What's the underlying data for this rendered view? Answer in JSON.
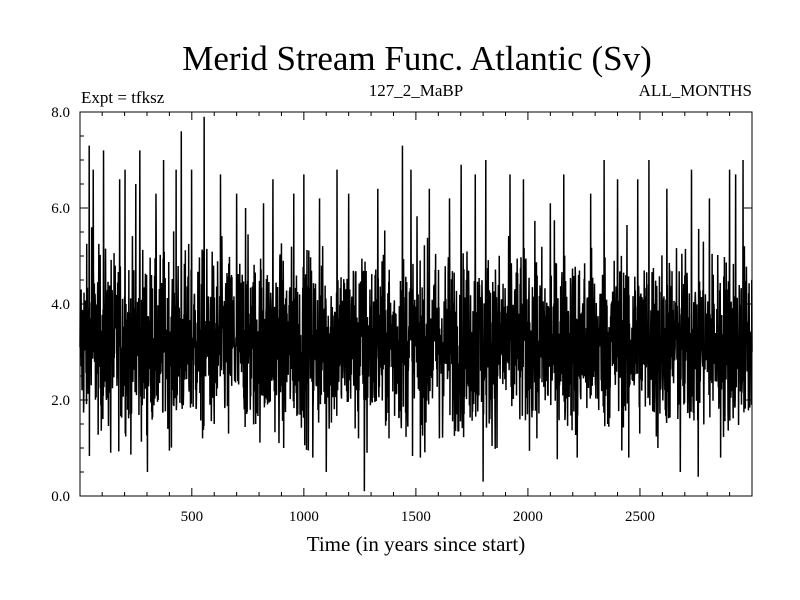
{
  "chart_data": {
    "type": "line",
    "title": "Merid Stream Func. Atlantic (Sv)",
    "subtitle_left": "Expt = tfksz",
    "subtitle_center": "127_2_MaBP",
    "subtitle_right": "ALL_MONTHS",
    "xlabel": "Time (in years since start)",
    "ylabel": "",
    "xlim": [
      1,
      3000
    ],
    "ylim": [
      0.0,
      8.0
    ],
    "x_ticks": [
      500,
      1000,
      1500,
      2000,
      2500
    ],
    "x_tick_labels": [
      "500",
      "1000",
      "1500",
      "2000",
      "2500"
    ],
    "y_ticks": [
      0,
      2,
      4,
      6,
      8
    ],
    "y_tick_labels": [
      "0.0",
      "2.0",
      "4.0",
      "6.0",
      "8.0"
    ],
    "grid": false,
    "series": [
      {
        "color": "#000000",
        "mean": 3.2,
        "x": [
          1,
          42,
          53,
          60,
          106,
          138,
          178,
          202,
          220,
          250,
          268,
          302,
          340,
          374,
          395,
          430,
          453,
          472,
          499,
          548,
          555,
          600,
          628,
          664,
          700,
          740,
          785,
          820,
          862,
          910,
          955,
          987,
          1000,
          1040,
          1070,
          1100,
          1148,
          1200,
          1244,
          1270,
          1282,
          1330,
          1380,
          1440,
          1478,
          1520,
          1560,
          1605,
          1650,
          1702,
          1765,
          1800,
          1812,
          1862,
          1920,
          1980,
          2040,
          2100,
          2160,
          2220,
          2280,
          2340,
          2400,
          2450,
          2490,
          2540,
          2580,
          2620,
          2680,
          2730,
          2760,
          2810,
          2860,
          2900,
          2927,
          2960,
          3000
        ],
        "y": [
          3.1,
          7.3,
          5.6,
          6.8,
          7.2,
          0.9,
          6.6,
          6.8,
          1.7,
          6.5,
          7.2,
          0.5,
          6.3,
          7.0,
          1.4,
          6.8,
          7.6,
          2.6,
          6.8,
          1.2,
          7.9,
          1.5,
          6.7,
          1.3,
          6.3,
          6.0,
          1.5,
          6.1,
          6.6,
          1.0,
          6.3,
          1.7,
          6.7,
          0.8,
          6.2,
          0.5,
          6.8,
          6.3,
          1.2,
          0.1,
          0.9,
          6.4,
          1.2,
          7.3,
          6.8,
          0.8,
          6.4,
          1.2,
          6.2,
          6.9,
          6.7,
          0.3,
          7.0,
          1.0,
          6.7,
          6.6,
          1.2,
          6.1,
          6.7,
          0.8,
          6.3,
          7.0,
          6.6,
          0.8,
          6.6,
          7.0,
          1.0,
          6.4,
          0.5,
          6.8,
          0.4,
          6.2,
          0.8,
          6.8,
          6.7,
          7.0,
          3.0
        ]
      }
    ]
  }
}
